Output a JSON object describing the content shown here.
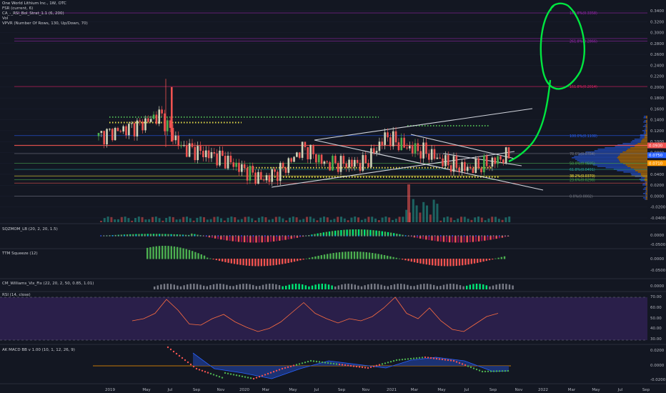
{
  "header": {
    "title": "One World Lithium Inc., 1W, OTC",
    "indicators": [
      "FSR (current, 6)",
      "CA_-_RSI_Bol_Strat_1.1 (6, 200)",
      "Vol",
      "VPVR (Number Of Rows, 130, Up/Down, 70)"
    ]
  },
  "panes": {
    "squeeze": "SQZMOM_LB (20, 2, 20, 1.5)",
    "ttm": "TTM Squeeze (12)",
    "williams": "CM_Williams_Vix_Fix (22, 20, 2, 50, 0.85, 1.01)",
    "rsi": "RSI (14, close)",
    "macd": "AK MACD BB v 1.00 (10, 1, 12, 26, 9)"
  },
  "price_axis": {
    "currency": "USD",
    "labels": [
      "0.3400",
      "0.3200",
      "0.3000",
      "0.2800",
      "0.2600",
      "0.2400",
      "0.2200",
      "0.2000",
      "0.1800",
      "0.1600",
      "0.1400",
      "0.1200",
      "0.1000",
      "0.0800",
      "0.0600",
      "0.0400",
      "0.0200",
      "0.0000",
      "-0.0200",
      "-0.0400"
    ],
    "current_price": "0.0750",
    "current_tag": "0.0710",
    "red_tag": "0.0930"
  },
  "sub_axes": {
    "squeeze": [
      "0.0000",
      "-0.0500"
    ],
    "ttm": [
      "0.0000",
      "-0.0500"
    ],
    "williams": [
      "0.0000"
    ],
    "rsi": [
      "70.00",
      "60.00",
      "50.00",
      "40.00",
      "30.00"
    ],
    "macd": [
      "0.0200",
      "0.0000",
      "-0.0200"
    ]
  },
  "time_axis": [
    "2019",
    "May",
    "Jul",
    "Sep",
    "Nov",
    "2020",
    "Mar",
    "May",
    "Jul",
    "Sep",
    "Nov",
    "2021",
    "Mar",
    "May",
    "Jul",
    "Sep",
    "Nov",
    "2022",
    "Mar",
    "May",
    "Jul",
    "Sep"
  ],
  "fib_labels": [
    "161.8%(0.3358)",
    "261.8%(0.2866)",
    "161.8%(0.2014)",
    "100.0%(0.1108)",
    "78.6%(0.0784)",
    "50.0%(0.0595)",
    "61.8%(0.0491)",
    "38.2%(0.0370)",
    "23.6%(0.0298)",
    "0.0%(0.0002)"
  ],
  "colors": {
    "background": "#131722",
    "up": "#d1d4b8",
    "down": "#ef5350",
    "green": "#26a69a",
    "bright_green": "#4caf50",
    "trend_line": "#d1d4dc",
    "fib_purple": "#9c27b0",
    "support_yellow": "#e8e04a",
    "annotation_green": "#00e640",
    "rsi_fill": "#2a1f4a",
    "rsi_line": "#ff6e40",
    "macd_fill": "#1e3a8a"
  },
  "chart_data": {
    "type": "line",
    "title": "One World Lithium Inc., 1W, OTC",
    "x_range": [
      "2018-10",
      "2022-10"
    ],
    "ylim": [
      -0.04,
      0.34
    ],
    "price_path": {
      "x": [
        "2018-12",
        "2019-03",
        "2019-05",
        "2019-07",
        "2019-08",
        "2019-10",
        "2019-12",
        "2020-02",
        "2020-03",
        "2020-05",
        "2020-07",
        "2020-08",
        "2020-10",
        "2020-12",
        "2021-02",
        "2021-03",
        "2021-05",
        "2021-06",
        "2021-08",
        "2021-09",
        "2021-10"
      ],
      "close": [
        0.11,
        0.12,
        0.13,
        0.15,
        0.09,
        0.08,
        0.07,
        0.05,
        0.03,
        0.05,
        0.09,
        0.06,
        0.06,
        0.06,
        0.11,
        0.09,
        0.08,
        0.06,
        0.05,
        0.06,
        0.075
      ]
    },
    "rsi": {
      "ylim": [
        30,
        70
      ],
      "last": 55
    },
    "macd": {
      "ylim": [
        -0.02,
        0.02
      ]
    }
  }
}
